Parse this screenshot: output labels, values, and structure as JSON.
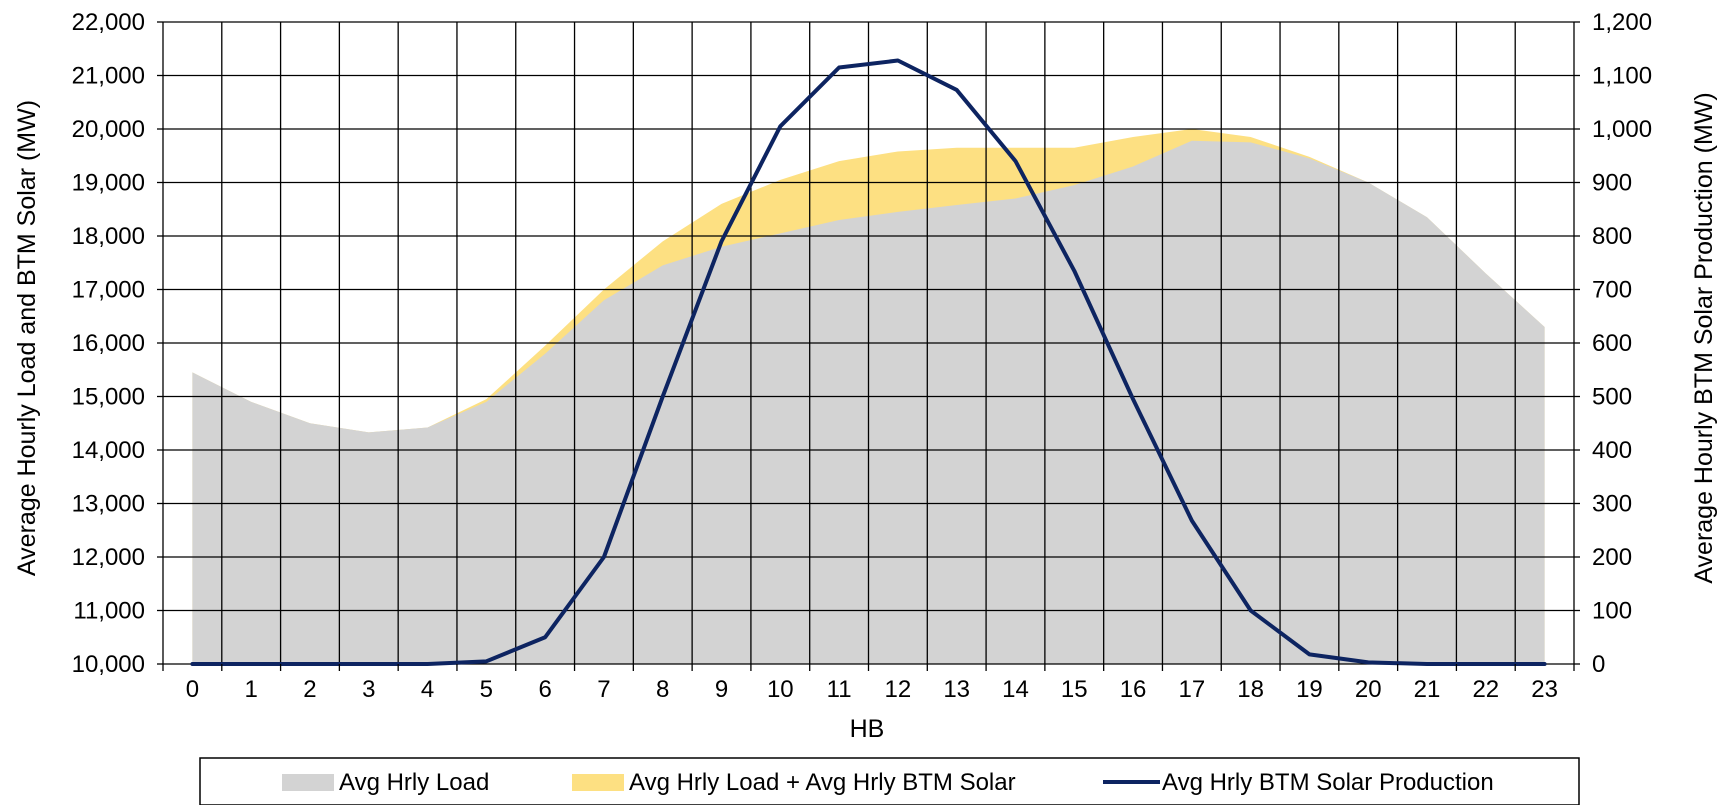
{
  "chart_data": {
    "type": "area",
    "title": "",
    "xlabel": "HB",
    "ylabel_left": "Average Hourly Load and BTM Solar (MW)",
    "ylabel_right": "Average Hourly BTM Solar Production (MW)",
    "x": [
      0,
      1,
      2,
      3,
      4,
      5,
      6,
      7,
      8,
      9,
      10,
      11,
      12,
      13,
      14,
      15,
      16,
      17,
      18,
      19,
      20,
      21,
      22,
      23
    ],
    "x_tick_labels": [
      "0",
      "1",
      "2",
      "3",
      "4",
      "5",
      "6",
      "7",
      "8",
      "9",
      "10",
      "11",
      "12",
      "13",
      "14",
      "15",
      "16",
      "17",
      "18",
      "19",
      "20",
      "21",
      "22",
      "23"
    ],
    "ylim_left": [
      10000,
      22000
    ],
    "ylim_right": [
      0,
      1200
    ],
    "y_left_ticks": [
      10000,
      11000,
      12000,
      13000,
      14000,
      15000,
      16000,
      17000,
      18000,
      19000,
      20000,
      21000,
      22000
    ],
    "y_left_tick_labels": [
      "10,000",
      "11,000",
      "12,000",
      "13,000",
      "14,000",
      "15,000",
      "16,000",
      "17,000",
      "18,000",
      "19,000",
      "20,000",
      "21,000",
      "22,000"
    ],
    "y_right_ticks": [
      0,
      100,
      200,
      300,
      400,
      500,
      600,
      700,
      800,
      900,
      1000,
      1100,
      1200
    ],
    "y_right_tick_labels": [
      "0",
      "100",
      "200",
      "300",
      "400",
      "500",
      "600",
      "700",
      "800",
      "900",
      "1,000",
      "1,100",
      "1,200"
    ],
    "grid": true,
    "legend_placement": "bottom",
    "series": [
      {
        "name": "Avg Hrly Load",
        "type": "area",
        "axis": "left",
        "color": "#d3d3d3",
        "values": [
          15450,
          14900,
          14500,
          14330,
          14420,
          14900,
          15800,
          16800,
          17450,
          17800,
          18050,
          18300,
          18450,
          18580,
          18700,
          18950,
          19300,
          19780,
          19750,
          19450,
          19000,
          18350,
          17300,
          16300
        ]
      },
      {
        "name": "Avg Hrly Load + Avg Hrly BTM Solar",
        "type": "area",
        "axis": "left",
        "color": "#fde082",
        "values": [
          15450,
          14900,
          14500,
          14330,
          14420,
          14950,
          15950,
          17000,
          17900,
          18600,
          19050,
          19400,
          19580,
          19650,
          19650,
          19650,
          19850,
          20000,
          19850,
          19480,
          19000,
          18350,
          17300,
          16300
        ]
      },
      {
        "name": "Avg Hrly BTM Solar Production",
        "type": "line",
        "axis": "right",
        "color": "#0d2461",
        "values": [
          0,
          0,
          0,
          0,
          0,
          5,
          50,
          200,
          500,
          790,
          1005,
          1115,
          1128,
          1073,
          940,
          735,
          495,
          268,
          100,
          18,
          3,
          0,
          0,
          0
        ]
      }
    ]
  }
}
